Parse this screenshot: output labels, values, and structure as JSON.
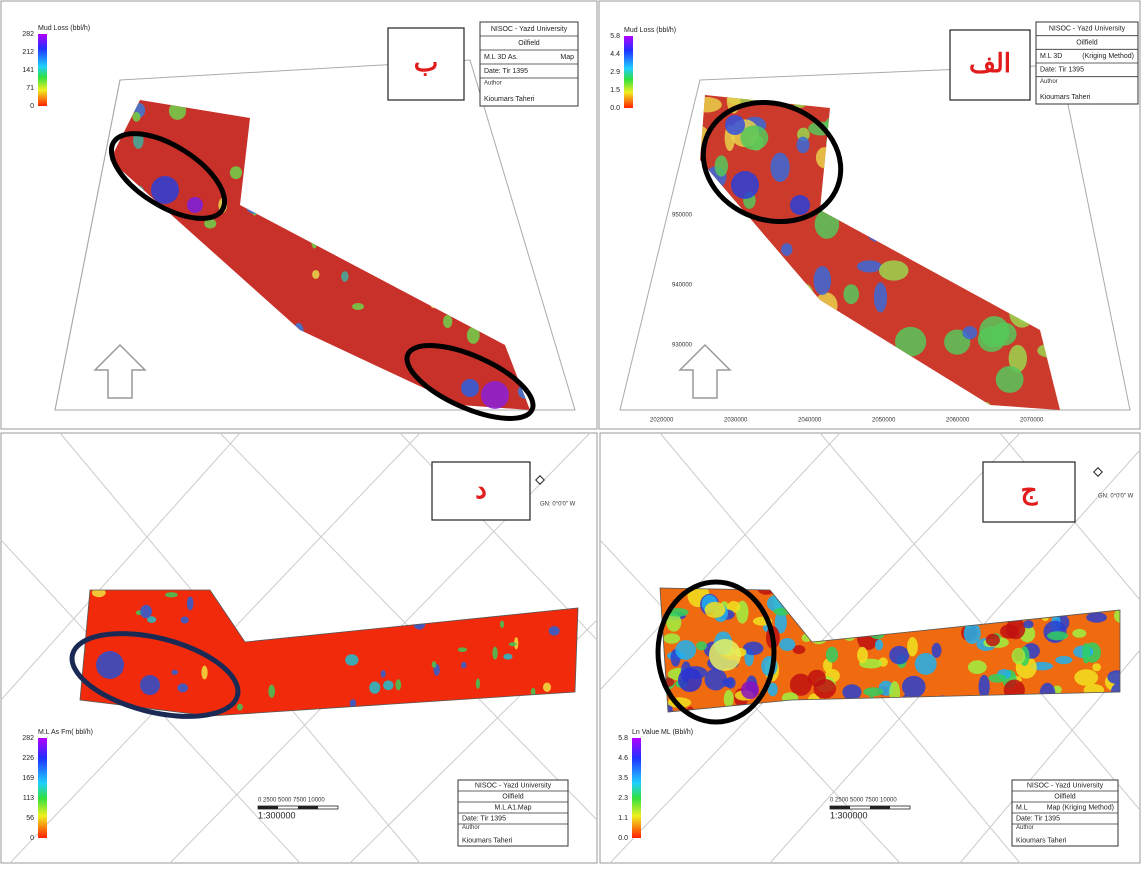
{
  "panels": [
    {
      "label": "ب",
      "legend": {
        "title": "Mud Loss (bbl/h)",
        "ticks": [
          "282",
          "212",
          "141",
          "71",
          "0"
        ]
      },
      "info": [
        [
          "NISOC - Yazd University"
        ],
        [
          "Oilfield"
        ],
        [
          "M.L 3D As.",
          "Map"
        ],
        [
          "Date: Tir 1395"
        ],
        [
          "Author"
        ],
        [
          "Kioumars Taheri"
        ]
      ]
    },
    {
      "label": "الف",
      "legend": {
        "title": "Mud Loss (bbl/h)",
        "ticks": [
          "5.8",
          "4.4",
          "2.9",
          "1.5",
          "0.0"
        ]
      },
      "info": [
        [
          "NISOC - Yazd University"
        ],
        [
          "Oilfield"
        ],
        [
          "M.L 3D",
          "(Kriging Method)"
        ],
        [
          "Date: Tir 1395"
        ],
        [
          "Author"
        ],
        [
          "Kioumars Taheri"
        ]
      ],
      "axis_y": [
        "950000",
        "940000",
        "930000"
      ],
      "axis_x": [
        "2020000",
        "2030000",
        "2040000",
        "2050000",
        "2060000",
        "2070000"
      ]
    },
    {
      "label": "د",
      "legend": {
        "title": "M.L As Fm( bbl/h)",
        "ticks": [
          "282",
          "226",
          "169",
          "113",
          "56",
          "0"
        ]
      },
      "info": [
        [
          "NISOC - Yazd University"
        ],
        [
          "Oilfield"
        ],
        [
          "M.L A1.Map"
        ],
        [
          "Date: Tir 1395"
        ],
        [
          "Author"
        ],
        [
          "Kioumars Taheri"
        ]
      ],
      "north": "GN: 0°0'0\" W",
      "scale": {
        "ticks": "0    2500   5000   7500  10000",
        "ratio": "1:300000"
      }
    },
    {
      "label": "ج",
      "legend": {
        "title": "Ln Value ML (Bbl/h)",
        "ticks": [
          "5.8",
          "4.6",
          "3.5",
          "2.3",
          "1.1",
          "0.0"
        ]
      },
      "info": [
        [
          "NISOC - Yazd University"
        ],
        [
          "Oilfield"
        ],
        [
          "M.L",
          "Map (Kriging Method)"
        ],
        [
          "Date: Tir 1395"
        ],
        [
          "Author"
        ],
        [
          "Kioumars Taheri"
        ]
      ],
      "north": "GN: 0°0'0\" W",
      "scale": {
        "ticks": "0    2500   5000   7500  10000",
        "ratio": "1:300000"
      }
    }
  ]
}
